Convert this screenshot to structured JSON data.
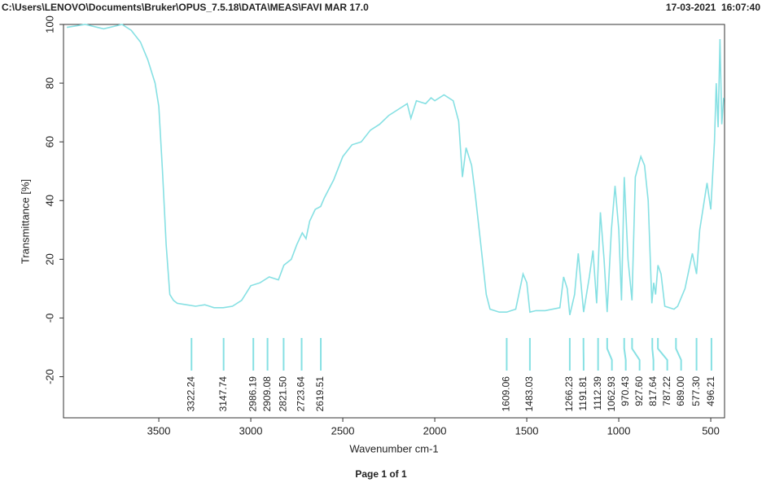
{
  "chart_data": {
    "type": "line",
    "title": "C:\\Users\\LENOVO\\Documents\\Bruker\\OPUS_7.5.18\\DATA\\MEAS\\FAVI MAR 17.0",
    "timestamp": "17-03-2021  16:07:40",
    "xlabel": "Wavenumber cm-1",
    "ylabel": "Transmittance [%]",
    "footer": "Page 1 of 1",
    "color": "#86e0e3",
    "xlim": [
      4018,
      425
    ],
    "ylim": [
      -34,
      100
    ],
    "xticks": [
      3500,
      3000,
      2500,
      2000,
      1500,
      1000,
      500
    ],
    "yticks": [
      100,
      80,
      60,
      40,
      20,
      {
        "value": 0,
        "label": "-0"
      },
      -20
    ],
    "x": [
      4000,
      3900,
      3800,
      3700,
      3650,
      3600,
      3560,
      3520,
      3500,
      3480,
      3460,
      3440,
      3420,
      3400,
      3350,
      3300,
      3250,
      3200,
      3150,
      3100,
      3050,
      3000,
      2950,
      2900,
      2850,
      2820,
      2780,
      2750,
      2720,
      2700,
      2680,
      2650,
      2620,
      2600,
      2550,
      2500,
      2450,
      2400,
      2350,
      2300,
      2250,
      2200,
      2150,
      2130,
      2100,
      2050,
      2020,
      2000,
      1950,
      1900,
      1870,
      1850,
      1830,
      1800,
      1780,
      1750,
      1720,
      1700,
      1650,
      1609,
      1560,
      1520,
      1500,
      1483,
      1450,
      1400,
      1320,
      1300,
      1280,
      1266,
      1240,
      1220,
      1200,
      1191,
      1160,
      1140,
      1120,
      1100,
      1080,
      1063,
      1040,
      1020,
      1000,
      985,
      970,
      950,
      928,
      910,
      880,
      860,
      840,
      820,
      810,
      800,
      787,
      770,
      750,
      700,
      680,
      640,
      600,
      577,
      560,
      520,
      500,
      480,
      470,
      460,
      450,
      440,
      430
    ],
    "values": [
      99,
      100,
      98.5,
      100,
      98,
      94,
      88,
      80,
      72,
      50,
      25,
      8,
      6,
      5,
      4.5,
      4,
      4.5,
      3.5,
      3.5,
      4,
      6,
      11,
      12,
      14,
      13,
      18,
      20,
      25,
      29,
      27,
      33,
      37,
      38,
      41,
      47,
      55,
      59,
      60,
      64,
      66,
      69,
      71,
      73,
      68,
      74,
      73,
      75,
      74,
      76,
      74,
      67,
      48,
      58,
      52,
      42,
      25,
      8,
      3,
      2,
      2,
      3,
      15,
      12,
      2,
      2.5,
      2.5,
      3.5,
      14,
      10,
      1,
      8,
      22,
      8,
      2,
      14,
      23,
      5,
      36,
      20,
      2,
      30,
      45,
      30,
      6,
      48,
      20,
      6,
      48,
      55,
      52,
      40,
      5,
      12,
      8,
      18,
      15,
      4,
      3,
      4,
      10,
      22,
      15,
      30,
      46,
      37,
      60,
      80,
      65,
      95,
      66,
      75
    ],
    "peaks": {
      "values": [
        3322.24,
        3147.74,
        2986.19,
        2909.08,
        2821.5,
        2723.64,
        2619.51,
        1609.06,
        1483.03,
        1266.23,
        1191.81,
        1112.39,
        1062.93,
        970.43,
        927.6,
        817.64,
        787.22,
        689,
        577.3,
        496.21
      ],
      "value_labels": [
        "3322.24",
        "3147.74",
        "2986.19",
        "2909.08",
        "2821.50",
        "2723.64",
        "2619.51",
        "1609.06",
        "1483.03",
        "1266.23",
        "1191.81",
        "1112.39",
        "1062.93",
        "970.43",
        "927.60",
        "817.64",
        "787.22",
        "689.00",
        "577.30",
        "496.21"
      ]
    }
  }
}
